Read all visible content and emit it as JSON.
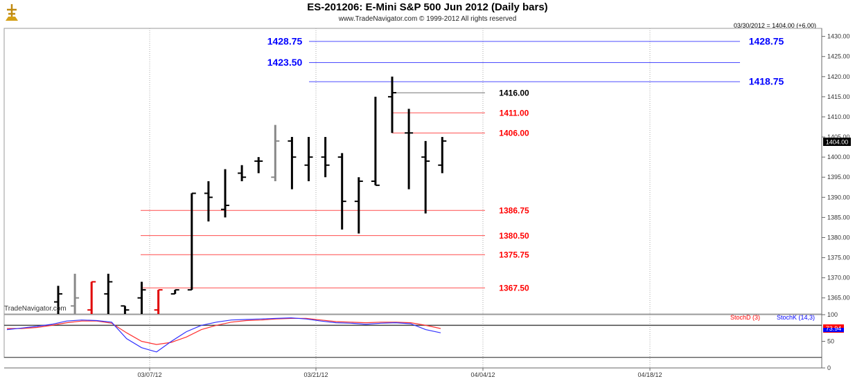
{
  "chart_data": {
    "type": "bar",
    "title": "ES-201206:  E-Mini S&P 500 Jun 2012  (Daily bars)",
    "subtitle": "www.TradeNavigator.com © 1999-2012 All rights reserved",
    "header_right": "03/30/2012 = 1404.00 (+6.00)",
    "last_price_label": "1404.00",
    "watermark": "TradeNavigator.com",
    "ylim": [
      1361,
      1432
    ],
    "yticks": [
      "1430.00",
      "1425.00",
      "1420.00",
      "1415.00",
      "1410.00",
      "1405.00",
      "1400.00",
      "1395.00",
      "1390.00",
      "1385.00",
      "1380.00",
      "1375.00",
      "1370.00",
      "1365.00"
    ],
    "xticks": [
      "03/07/12",
      "03/21/12",
      "04/04/12",
      "04/18/12"
    ],
    "bars": [
      {
        "o": 1364,
        "h": 1368,
        "l": 1361,
        "c": 1366,
        "color": "black"
      },
      {
        "o": 1363,
        "h": 1371,
        "l": 1361,
        "c": 1365,
        "color": "gray"
      },
      {
        "o": 1362,
        "h": 1369,
        "l": 1361,
        "c": 1369,
        "color": "red"
      },
      {
        "o": 1366,
        "h": 1371,
        "l": 1361,
        "c": 1369,
        "color": "black"
      },
      {
        "o": 1363,
        "h": 1363,
        "l": 1361,
        "c": 1362,
        "color": "black"
      },
      {
        "o": 1365,
        "h": 1369,
        "l": 1361,
        "c": 1367,
        "color": "black"
      },
      {
        "o": 1362,
        "h": 1367,
        "l": 1361,
        "c": 1367,
        "color": "red"
      },
      {
        "o": 1366,
        "h": 1367,
        "l": 1366,
        "c": 1367,
        "color": "black"
      },
      {
        "o": 1367,
        "h": 1391,
        "l": 1367,
        "c": 1391,
        "color": "black"
      },
      {
        "o": 1391,
        "h": 1394,
        "l": 1384,
        "c": 1390,
        "color": "black"
      },
      {
        "o": 1387,
        "h": 1397,
        "l": 1385,
        "c": 1388,
        "color": "black"
      },
      {
        "o": 1396,
        "h": 1398,
        "l": 1394,
        "c": 1395,
        "color": "black"
      },
      {
        "o": 1399,
        "h": 1400,
        "l": 1396,
        "c": 1399,
        "color": "black"
      },
      {
        "o": 1395,
        "h": 1408,
        "l": 1394,
        "c": 1404,
        "color": "gray"
      },
      {
        "o": 1404,
        "h": 1405,
        "l": 1392,
        "c": 1400,
        "color": "black"
      },
      {
        "o": 1398,
        "h": 1405,
        "l": 1394,
        "c": 1400,
        "color": "black"
      },
      {
        "o": 1400,
        "h": 1405,
        "l": 1395,
        "c": 1398,
        "color": "black"
      },
      {
        "o": 1400,
        "h": 1401,
        "l": 1382,
        "c": 1389,
        "color": "black"
      },
      {
        "o": 1389,
        "h": 1395,
        "l": 1381,
        "c": 1394,
        "color": "black"
      },
      {
        "o": 1394,
        "h": 1415,
        "l": 1393,
        "c": 1393,
        "color": "black"
      },
      {
        "o": 1415,
        "h": 1420,
        "l": 1406,
        "c": 1416,
        "color": "black"
      },
      {
        "o": 1406,
        "h": 1412,
        "l": 1392,
        "c": 1406,
        "color": "black"
      },
      {
        "o": 1400,
        "h": 1404,
        "l": 1386,
        "c": 1399,
        "color": "black"
      },
      {
        "o": 1398,
        "h": 1405,
        "l": 1396,
        "c": 1404,
        "color": "black"
      }
    ],
    "levels": [
      {
        "value": 1428.75,
        "label": "1428.75",
        "color": "#0000ff",
        "label_left": "1428.75",
        "span": "wide"
      },
      {
        "value": 1423.5,
        "label": "",
        "color": "#0000ff",
        "label_left": "1423.50",
        "span": "wide"
      },
      {
        "value": 1418.75,
        "label": "1418.75",
        "color": "#0000ff",
        "label_left": "",
        "span": "right"
      },
      {
        "value": 1416.0,
        "label": "1416.00",
        "color": "#000000",
        "label_left": "",
        "span": "short"
      },
      {
        "value": 1411.0,
        "label": "1411.00",
        "color": "#ff0000",
        "label_left": "",
        "span": "short"
      },
      {
        "value": 1406.0,
        "label": "1406.00",
        "color": "#ff0000",
        "label_left": "",
        "span": "short"
      },
      {
        "value": 1386.75,
        "label": "1386.75",
        "color": "#ff0000",
        "label_left": "",
        "span": "long"
      },
      {
        "value": 1380.5,
        "label": "1380.50",
        "color": "#ff0000",
        "label_left": "",
        "span": "long"
      },
      {
        "value": 1375.75,
        "label": "1375.75",
        "color": "#ff0000",
        "label_left": "",
        "span": "long"
      },
      {
        "value": 1367.5,
        "label": "1367.50",
        "color": "#ff0000",
        "label_left": "",
        "span": "long"
      }
    ],
    "oscillator": {
      "ylim": [
        0,
        100
      ],
      "yticks": [
        "100",
        "50",
        "0"
      ],
      "overbought": 80,
      "last_value_label": "73.94",
      "legend": [
        {
          "name": "StochD (3)",
          "color": "#ff0000"
        },
        {
          "name": "StochK (14,3)",
          "color": "#0000ff"
        }
      ],
      "stochK": [
        72,
        75,
        78,
        82,
        88,
        90,
        89,
        86,
        55,
        38,
        30,
        50,
        68,
        80,
        86,
        90,
        91,
        92,
        93,
        94,
        92,
        88,
        85,
        84,
        82,
        84,
        85,
        83,
        72,
        66
      ],
      "stochD": [
        74,
        74,
        76,
        80,
        85,
        88,
        88,
        84,
        66,
        50,
        44,
        48,
        58,
        72,
        80,
        86,
        89,
        90,
        92,
        93,
        93,
        90,
        87,
        86,
        85,
        86,
        86,
        85,
        80,
        74
      ]
    }
  }
}
